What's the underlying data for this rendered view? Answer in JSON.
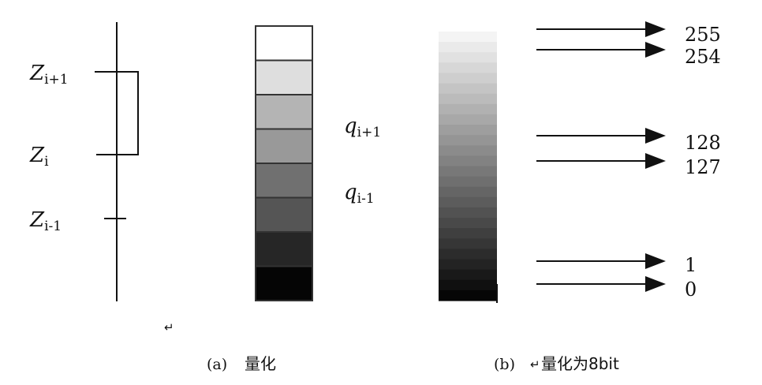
{
  "panel_a": {
    "axis_labels": [
      {
        "var": "Z",
        "sub": "i+1"
      },
      {
        "var": "Z",
        "sub": "i"
      },
      {
        "var": "Z",
        "sub": "i-1"
      }
    ],
    "quant_levels": [
      {
        "var": "q",
        "sub": "i+1"
      },
      {
        "var": "q",
        "sub": "i-1"
      }
    ],
    "swatches": [
      "#ffffff",
      "#dedede",
      "#b4b4b4",
      "#999999",
      "#707070",
      "#555555",
      "#262626",
      "#050505"
    ],
    "caption_prefix": "(a)",
    "caption_text": "量化",
    "return_mark": "↵"
  },
  "panel_b": {
    "gradient_steps": 26,
    "gradient_top": "#f4f4f4",
    "gradient_bottom": "#060606",
    "levels": [
      "255",
      "254",
      "128",
      "127",
      "1",
      "0"
    ],
    "caption_prefix": "(b)",
    "caption_mark": "↵",
    "caption_text": "量化为8bit"
  }
}
